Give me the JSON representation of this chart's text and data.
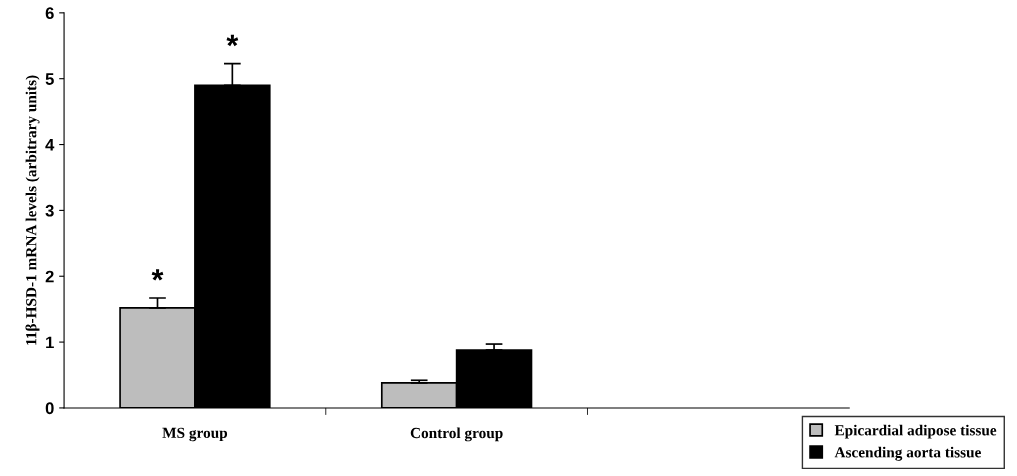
{
  "chart_data": {
    "type": "bar",
    "ylabel": "11β-HSD-1 mRNA levels (arbitrary units)",
    "categories": [
      "MS group",
      "Control group",
      null
    ],
    "series": [
      {
        "name": "Epicardial adipose tissue",
        "color": "#bdbdbd",
        "values": [
          1.52,
          0.38,
          null
        ],
        "errors": [
          [
            1.52,
            1.67
          ],
          [
            0.38,
            0.42
          ],
          null
        ]
      },
      {
        "name": "Ascending aorta tissue",
        "color": "#000000",
        "values": [
          4.9,
          0.88,
          null
        ],
        "errors": [
          [
            4.9,
            5.23
          ],
          [
            0.88,
            0.97
          ],
          null
        ]
      }
    ],
    "annotations": [
      "*",
      "*"
    ],
    "ylim": [
      0,
      6
    ],
    "yticks": [
      0,
      1,
      2,
      3,
      4,
      5,
      6
    ],
    "grid": false,
    "legend": "bottom right"
  }
}
